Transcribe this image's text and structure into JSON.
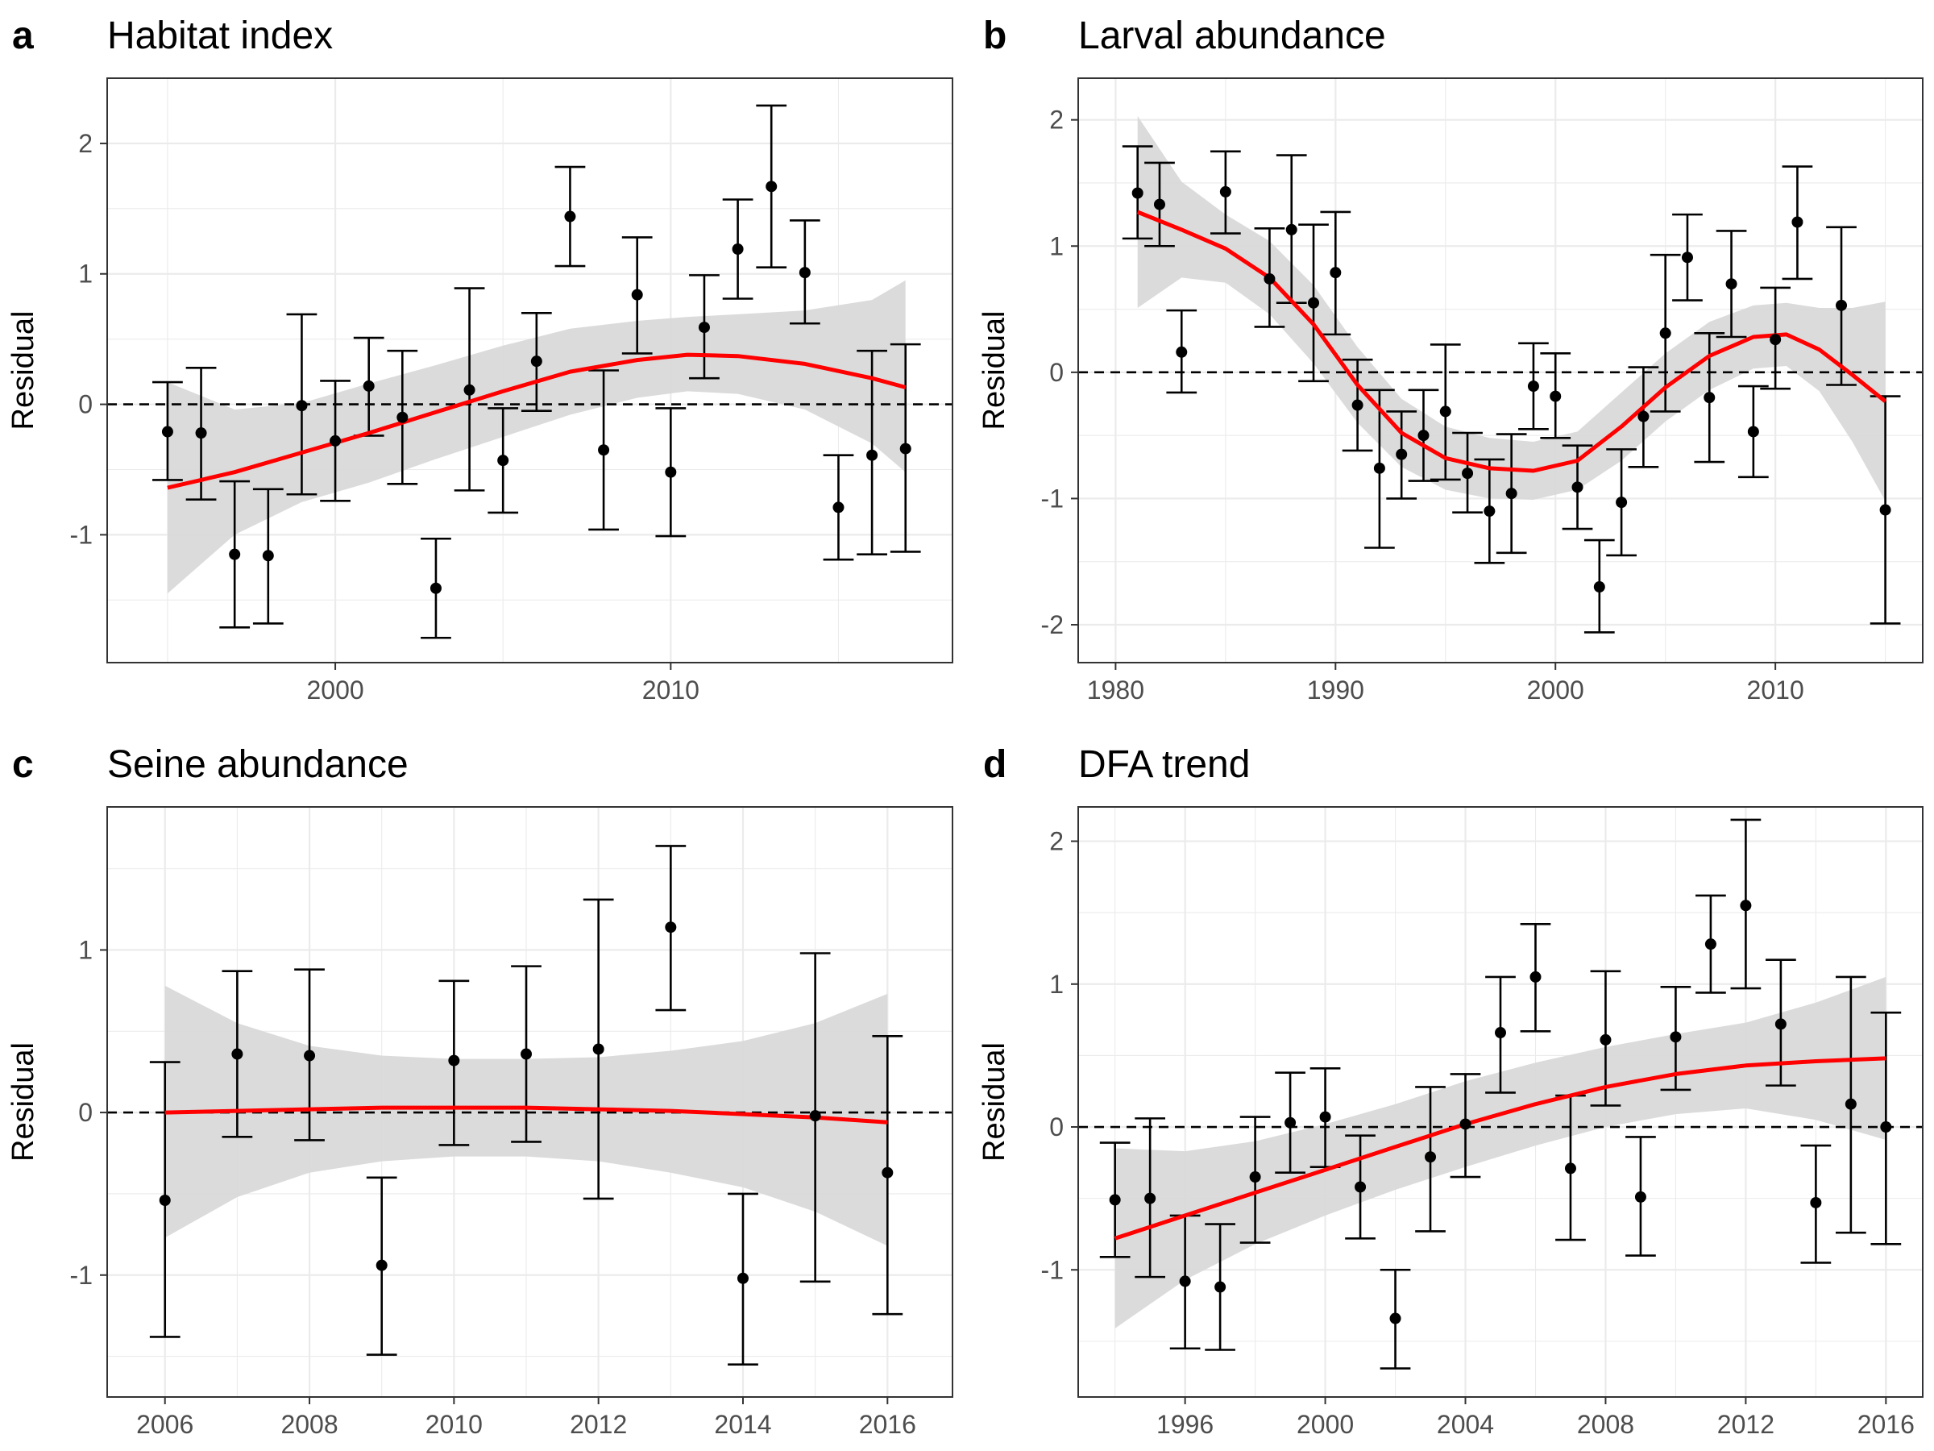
{
  "zero_line_style": "dashed",
  "colors": {
    "trend_line": "#ff0000",
    "confidence_band": "#d9d9d9",
    "points": "#000000",
    "panel_border": "#333333",
    "grid": "#ebebeb",
    "zero_line": "#000000"
  },
  "chart_data": [
    {
      "type": "scatter",
      "panel_letter": "a",
      "title": "Habitat index",
      "ylabel": "Residual",
      "xlabel": "",
      "xlim": [
        1993.2,
        2018.4
      ],
      "ylim": [
        -1.98,
        2.5
      ],
      "x_ticks": [
        2000,
        2010
      ],
      "y_ticks": [
        -1,
        0,
        1,
        2
      ],
      "grid": true,
      "zero_line": true,
      "points": [
        {
          "x": 1995,
          "y": -0.21,
          "lo": -0.58,
          "hi": 0.17
        },
        {
          "x": 1996,
          "y": -0.22,
          "lo": -0.73,
          "hi": 0.28
        },
        {
          "x": 1997,
          "y": -1.15,
          "lo": -1.71,
          "hi": -0.59
        },
        {
          "x": 1998,
          "y": -1.16,
          "lo": -1.68,
          "hi": -0.65
        },
        {
          "x": 1999,
          "y": -0.01,
          "lo": -0.69,
          "hi": 0.69
        },
        {
          "x": 2000,
          "y": -0.28,
          "lo": -0.74,
          "hi": 0.18
        },
        {
          "x": 2001,
          "y": 0.14,
          "lo": -0.24,
          "hi": 0.51
        },
        {
          "x": 2002,
          "y": -0.1,
          "lo": -0.61,
          "hi": 0.41
        },
        {
          "x": 2003,
          "y": -1.41,
          "lo": -1.79,
          "hi": -1.03
        },
        {
          "x": 2004,
          "y": 0.11,
          "lo": -0.66,
          "hi": 0.89
        },
        {
          "x": 2005,
          "y": -0.43,
          "lo": -0.83,
          "hi": -0.03
        },
        {
          "x": 2006,
          "y": 0.33,
          "lo": -0.05,
          "hi": 0.7
        },
        {
          "x": 2007,
          "y": 1.44,
          "lo": 1.06,
          "hi": 1.82
        },
        {
          "x": 2008,
          "y": -0.35,
          "lo": -0.96,
          "hi": 0.26
        },
        {
          "x": 2009,
          "y": 0.84,
          "lo": 0.39,
          "hi": 1.28
        },
        {
          "x": 2010,
          "y": -0.52,
          "lo": -1.01,
          "hi": -0.03
        },
        {
          "x": 2011,
          "y": 0.59,
          "lo": 0.2,
          "hi": 0.99
        },
        {
          "x": 2012,
          "y": 1.19,
          "lo": 0.81,
          "hi": 1.57
        },
        {
          "x": 2013,
          "y": 1.67,
          "lo": 1.05,
          "hi": 2.29
        },
        {
          "x": 2014,
          "y": 1.01,
          "lo": 0.62,
          "hi": 1.41
        },
        {
          "x": 2015,
          "y": -0.79,
          "lo": -1.19,
          "hi": -0.39
        },
        {
          "x": 2016,
          "y": -0.39,
          "lo": -1.15,
          "hi": 0.41
        },
        {
          "x": 2017,
          "y": -0.34,
          "lo": -1.13,
          "hi": 0.46
        }
      ],
      "smooth": {
        "x": [
          1995,
          1997,
          1999,
          2001,
          2003,
          2005,
          2007,
          2009,
          2010.5,
          2012,
          2014,
          2016,
          2017
        ],
        "y": [
          -0.64,
          -0.52,
          -0.37,
          -0.22,
          -0.06,
          0.1,
          0.25,
          0.34,
          0.38,
          0.37,
          0.31,
          0.2,
          0.13
        ],
        "lo": [
          -1.45,
          -1.0,
          -0.75,
          -0.6,
          -0.42,
          -0.25,
          -0.08,
          0.05,
          0.1,
          0.08,
          -0.04,
          -0.3,
          -0.52
        ],
        "hi": [
          0.17,
          -0.04,
          0.01,
          0.16,
          0.3,
          0.45,
          0.58,
          0.64,
          0.67,
          0.69,
          0.72,
          0.8,
          0.95
        ]
      }
    },
    {
      "type": "scatter",
      "panel_letter": "b",
      "title": "Larval abundance",
      "ylabel": "Residual",
      "xlabel": "",
      "xlim": [
        1978.3,
        2016.7
      ],
      "ylim": [
        -2.3,
        2.33
      ],
      "x_ticks": [
        1980,
        1990,
        2000,
        2010
      ],
      "y_ticks": [
        -2,
        -1,
        0,
        1,
        2
      ],
      "grid": true,
      "zero_line": true,
      "points": [
        {
          "x": 1981,
          "y": 1.42,
          "lo": 1.06,
          "hi": 1.79
        },
        {
          "x": 1982,
          "y": 1.33,
          "lo": 1.0,
          "hi": 1.66
        },
        {
          "x": 1983,
          "y": 0.16,
          "lo": -0.16,
          "hi": 0.49
        },
        {
          "x": 1985,
          "y": 1.43,
          "lo": 1.1,
          "hi": 1.75
        },
        {
          "x": 1987,
          "y": 0.74,
          "lo": 0.36,
          "hi": 1.14
        },
        {
          "x": 1988,
          "y": 1.13,
          "lo": 0.55,
          "hi": 1.72
        },
        {
          "x": 1989,
          "y": 0.55,
          "lo": -0.07,
          "hi": 1.17
        },
        {
          "x": 1990,
          "y": 0.79,
          "lo": 0.3,
          "hi": 1.27
        },
        {
          "x": 1991,
          "y": -0.26,
          "lo": -0.62,
          "hi": 0.1
        },
        {
          "x": 1992,
          "y": -0.76,
          "lo": -1.39,
          "hi": -0.14
        },
        {
          "x": 1993,
          "y": -0.65,
          "lo": -1.0,
          "hi": -0.31
        },
        {
          "x": 1994,
          "y": -0.5,
          "lo": -0.86,
          "hi": -0.14
        },
        {
          "x": 1995,
          "y": -0.31,
          "lo": -0.85,
          "hi": 0.22
        },
        {
          "x": 1996,
          "y": -0.8,
          "lo": -1.11,
          "hi": -0.48
        },
        {
          "x": 1997,
          "y": -1.1,
          "lo": -1.51,
          "hi": -0.69
        },
        {
          "x": 1998,
          "y": -0.96,
          "lo": -1.43,
          "hi": -0.49
        },
        {
          "x": 1999,
          "y": -0.11,
          "lo": -0.45,
          "hi": 0.23
        },
        {
          "x": 2000,
          "y": -0.19,
          "lo": -0.52,
          "hi": 0.15
        },
        {
          "x": 2001,
          "y": -0.91,
          "lo": -1.24,
          "hi": -0.58
        },
        {
          "x": 2002,
          "y": -1.7,
          "lo": -2.06,
          "hi": -1.33
        },
        {
          "x": 2003,
          "y": -1.03,
          "lo": -1.45,
          "hi": -0.61
        },
        {
          "x": 2004,
          "y": -0.35,
          "lo": -0.75,
          "hi": 0.04
        },
        {
          "x": 2005,
          "y": 0.31,
          "lo": -0.31,
          "hi": 0.93
        },
        {
          "x": 2006,
          "y": 0.91,
          "lo": 0.57,
          "hi": 1.25
        },
        {
          "x": 2007,
          "y": -0.2,
          "lo": -0.71,
          "hi": 0.31
        },
        {
          "x": 2008,
          "y": 0.7,
          "lo": 0.28,
          "hi": 1.12
        },
        {
          "x": 2009,
          "y": -0.47,
          "lo": -0.83,
          "hi": -0.11
        },
        {
          "x": 2010,
          "y": 0.26,
          "lo": -0.13,
          "hi": 0.67
        },
        {
          "x": 2011,
          "y": 1.19,
          "lo": 0.74,
          "hi": 1.63
        },
        {
          "x": 2013,
          "y": 0.53,
          "lo": -0.1,
          "hi": 1.15
        },
        {
          "x": 2015,
          "y": -1.09,
          "lo": -1.99,
          "hi": -0.19
        }
      ],
      "smooth": {
        "x": [
          1981,
          1983,
          1985,
          1987,
          1989,
          1991,
          1993,
          1995,
          1997,
          1999,
          2001,
          2003,
          2005,
          2007,
          2009,
          2010.5,
          2012,
          2013.5,
          2015
        ],
        "y": [
          1.27,
          1.13,
          0.98,
          0.75,
          0.38,
          -0.1,
          -0.48,
          -0.68,
          -0.76,
          -0.78,
          -0.7,
          -0.43,
          -0.12,
          0.13,
          0.28,
          0.3,
          0.18,
          -0.02,
          -0.23
        ],
        "lo": [
          0.51,
          0.75,
          0.71,
          0.46,
          0.07,
          -0.4,
          -0.75,
          -0.93,
          -1.0,
          -1.01,
          -0.93,
          -0.7,
          -0.39,
          -0.14,
          0.03,
          0.05,
          -0.15,
          -0.55,
          -1.02
        ],
        "hi": [
          2.03,
          1.51,
          1.25,
          1.04,
          0.69,
          0.2,
          -0.21,
          -0.43,
          -0.52,
          -0.55,
          -0.47,
          -0.16,
          0.15,
          0.4,
          0.53,
          0.55,
          0.51,
          0.51,
          0.56
        ]
      }
    },
    {
      "type": "scatter",
      "panel_letter": "c",
      "title": "Seine abundance",
      "ylabel": "Residual",
      "xlabel": "",
      "xlim": [
        2005.2,
        2016.9
      ],
      "ylim": [
        -1.75,
        1.88
      ],
      "x_ticks": [
        2006,
        2008,
        2010,
        2012,
        2014,
        2016
      ],
      "y_ticks": [
        -1,
        0,
        1
      ],
      "grid": true,
      "zero_line": true,
      "points": [
        {
          "x": 2006,
          "y": -0.54,
          "lo": -1.38,
          "hi": 0.31
        },
        {
          "x": 2007,
          "y": 0.36,
          "lo": -0.15,
          "hi": 0.87
        },
        {
          "x": 2008,
          "y": 0.35,
          "lo": -0.17,
          "hi": 0.88
        },
        {
          "x": 2009,
          "y": -0.94,
          "lo": -1.49,
          "hi": -0.4
        },
        {
          "x": 2010,
          "y": 0.32,
          "lo": -0.2,
          "hi": 0.81
        },
        {
          "x": 2011,
          "y": 0.36,
          "lo": -0.18,
          "hi": 0.9
        },
        {
          "x": 2012,
          "y": 0.39,
          "lo": -0.53,
          "hi": 1.31
        },
        {
          "x": 2013,
          "y": 1.14,
          "lo": 0.63,
          "hi": 1.64
        },
        {
          "x": 2014,
          "y": -1.02,
          "lo": -1.55,
          "hi": -0.5
        },
        {
          "x": 2015,
          "y": -0.02,
          "lo": -1.04,
          "hi": 0.98
        },
        {
          "x": 2016,
          "y": -0.37,
          "lo": -1.24,
          "hi": 0.47
        }
      ],
      "smooth": {
        "x": [
          2006,
          2007,
          2008,
          2009,
          2010,
          2011,
          2012,
          2013,
          2014,
          2015,
          2016
        ],
        "y": [
          0.0,
          0.01,
          0.02,
          0.03,
          0.03,
          0.03,
          0.02,
          0.01,
          -0.01,
          -0.03,
          -0.06
        ],
        "lo": [
          -0.77,
          -0.52,
          -0.37,
          -0.3,
          -0.27,
          -0.27,
          -0.3,
          -0.37,
          -0.46,
          -0.61,
          -0.82
        ],
        "hi": [
          0.78,
          0.55,
          0.41,
          0.35,
          0.33,
          0.33,
          0.34,
          0.38,
          0.44,
          0.55,
          0.73
        ]
      }
    },
    {
      "type": "scatter",
      "panel_letter": "d",
      "title": "DFA trend",
      "ylabel": "Residual",
      "xlabel": "",
      "xlim": [
        1992.95,
        2017.05
      ],
      "ylim": [
        -1.89,
        2.24
      ],
      "x_ticks": [
        1996,
        2000,
        2004,
        2008,
        2012,
        2016
      ],
      "y_ticks": [
        -1,
        0,
        1,
        2
      ],
      "grid": true,
      "zero_line": true,
      "points": [
        {
          "x": 1994,
          "y": -0.51,
          "lo": -0.91,
          "hi": -0.11
        },
        {
          "x": 1995,
          "y": -0.5,
          "lo": -1.05,
          "hi": 0.06
        },
        {
          "x": 1996,
          "y": -1.08,
          "lo": -1.55,
          "hi": -0.62
        },
        {
          "x": 1997,
          "y": -1.12,
          "lo": -1.56,
          "hi": -0.68
        },
        {
          "x": 1998,
          "y": -0.35,
          "lo": -0.81,
          "hi": 0.07
        },
        {
          "x": 1999,
          "y": 0.03,
          "lo": -0.32,
          "hi": 0.38
        },
        {
          "x": 2000,
          "y": 0.07,
          "lo": -0.28,
          "hi": 0.41
        },
        {
          "x": 2001,
          "y": -0.42,
          "lo": -0.78,
          "hi": -0.06
        },
        {
          "x": 2002,
          "y": -1.34,
          "lo": -1.69,
          "hi": -1.0
        },
        {
          "x": 2003,
          "y": -0.21,
          "lo": -0.73,
          "hi": 0.28
        },
        {
          "x": 2004,
          "y": 0.02,
          "lo": -0.35,
          "hi": 0.37
        },
        {
          "x": 2005,
          "y": 0.66,
          "lo": 0.24,
          "hi": 1.05
        },
        {
          "x": 2006,
          "y": 1.05,
          "lo": 0.67,
          "hi": 1.42
        },
        {
          "x": 2007,
          "y": -0.29,
          "lo": -0.79,
          "hi": 0.22
        },
        {
          "x": 2008,
          "y": 0.61,
          "lo": 0.15,
          "hi": 1.09
        },
        {
          "x": 2009,
          "y": -0.49,
          "lo": -0.9,
          "hi": -0.07
        },
        {
          "x": 2010,
          "y": 0.63,
          "lo": 0.26,
          "hi": 0.98
        },
        {
          "x": 2011,
          "y": 1.28,
          "lo": 0.94,
          "hi": 1.62
        },
        {
          "x": 2012,
          "y": 1.55,
          "lo": 0.97,
          "hi": 2.15
        },
        {
          "x": 2013,
          "y": 0.72,
          "lo": 0.29,
          "hi": 1.17
        },
        {
          "x": 2014,
          "y": -0.53,
          "lo": -0.95,
          "hi": -0.13
        },
        {
          "x": 2015,
          "y": 0.16,
          "lo": -0.74,
          "hi": 1.05
        },
        {
          "x": 2016,
          "y": 0.0,
          "lo": -0.82,
          "hi": 0.8
        }
      ],
      "smooth": {
        "x": [
          1994,
          1996,
          1998,
          2000,
          2002,
          2004,
          2006,
          2008,
          2010,
          2012,
          2014,
          2016
        ],
        "y": [
          -0.78,
          -0.62,
          -0.46,
          -0.3,
          -0.14,
          0.02,
          0.16,
          0.28,
          0.37,
          0.43,
          0.46,
          0.48
        ],
        "lo": [
          -1.41,
          -1.07,
          -0.82,
          -0.62,
          -0.44,
          -0.28,
          -0.13,
          0.0,
          0.09,
          0.13,
          0.05,
          -0.09
        ],
        "hi": [
          -0.15,
          -0.17,
          -0.1,
          0.02,
          0.16,
          0.32,
          0.45,
          0.56,
          0.65,
          0.73,
          0.87,
          1.05
        ]
      }
    }
  ]
}
